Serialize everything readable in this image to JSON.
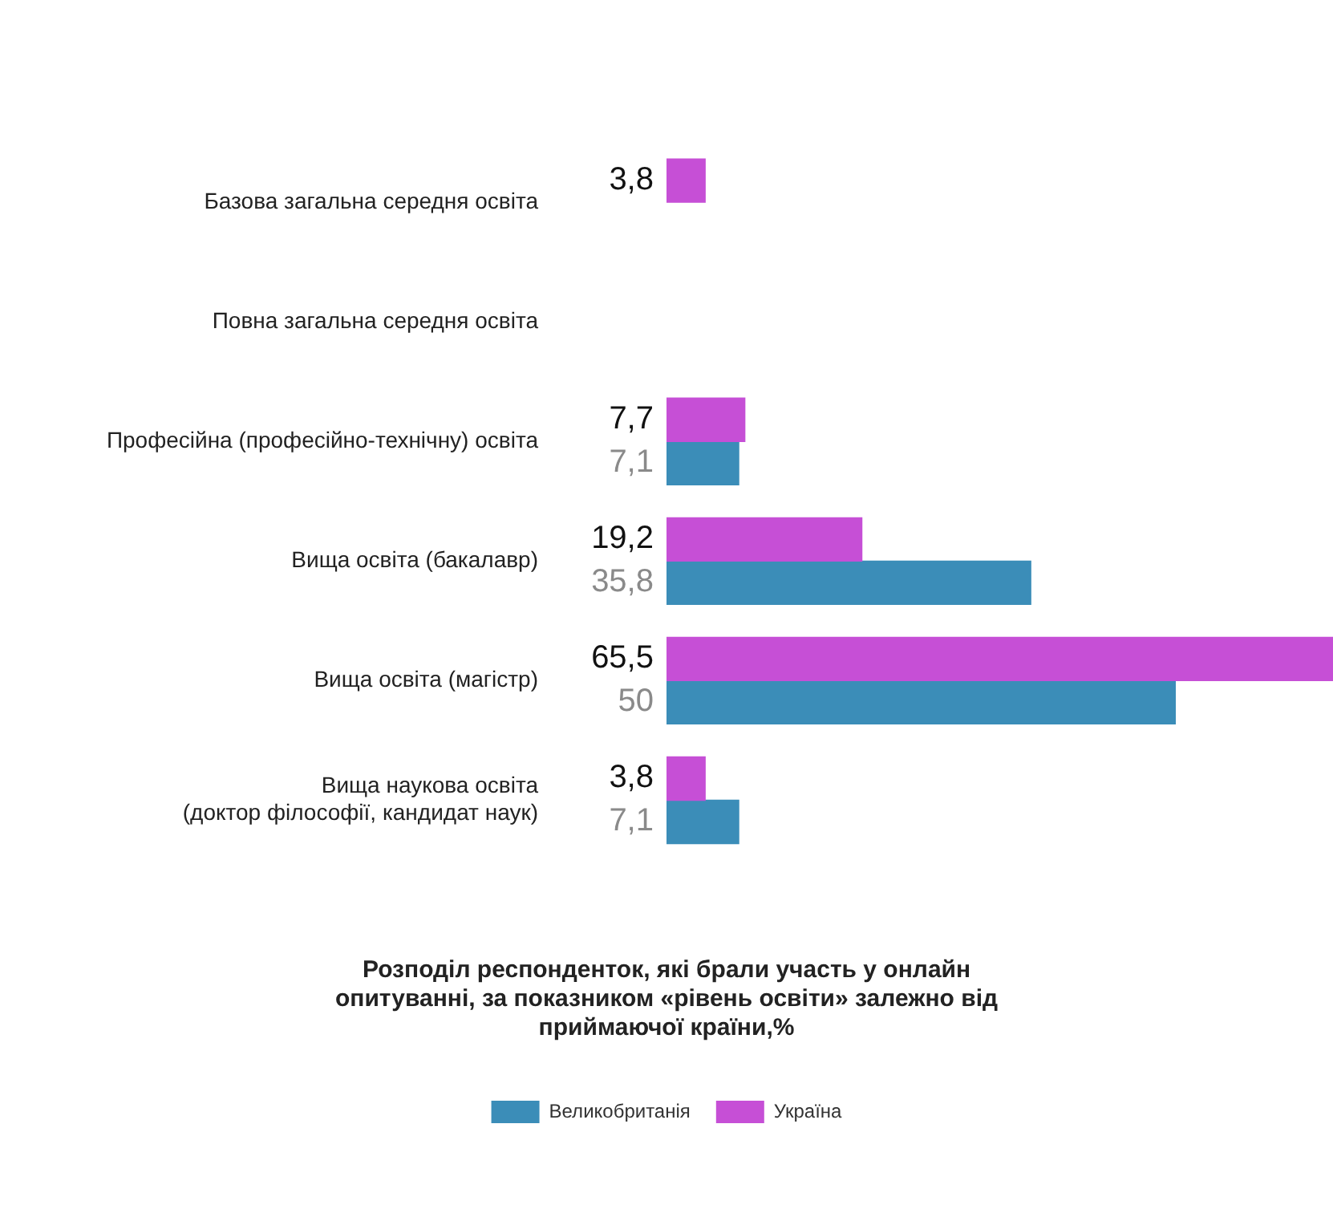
{
  "chart_data": {
    "type": "bar",
    "orientation": "horizontal",
    "title": "Розподіл респонденток, які брали участь у онлайн опитуванні, за показником «рівень освіти» залежно від приймаючої країни,%",
    "categories": [
      "Базова загальна середня освіта",
      "Повна загальна середня освіта",
      "Професійна (професійно-технічну) освіта",
      "Вища освіта (бакалавр)",
      "Вища освіта (магістр)",
      "Вища наукова освіта\n(доктор філософії, кандидат наук)"
    ],
    "series": [
      {
        "name": "Україна",
        "color": "#c64fd6",
        "values": [
          3.8,
          null,
          7.7,
          19.2,
          65.5,
          3.8
        ],
        "value_labels": [
          "3,8",
          null,
          "7,7",
          "19,2",
          "65,5",
          "3,8"
        ]
      },
      {
        "name": "Великобританія",
        "color": "#3b8db8",
        "values": [
          null,
          null,
          7.1,
          35.8,
          50,
          7.1
        ],
        "value_labels": [
          null,
          null,
          "7,1",
          "35,8",
          "50",
          "7,1"
        ]
      }
    ],
    "legend": "bottom"
  }
}
